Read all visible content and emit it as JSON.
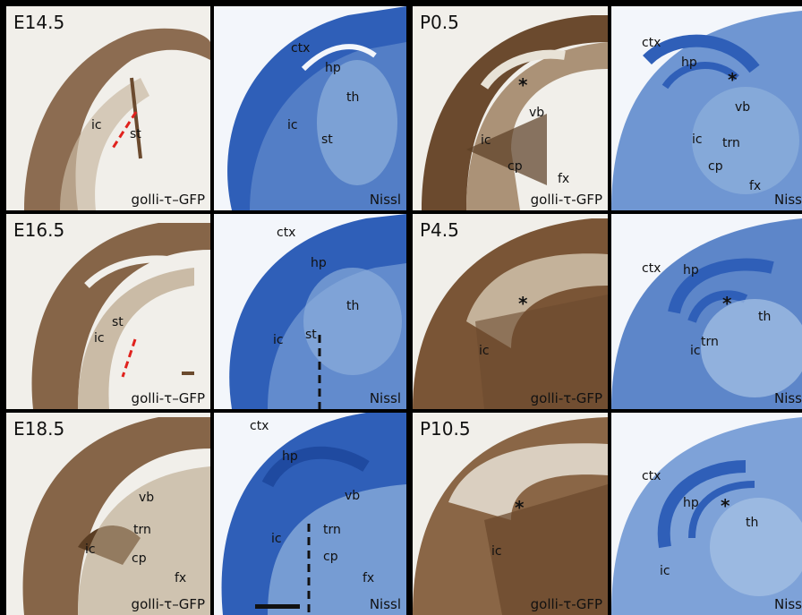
{
  "ages": [
    "E14.5",
    "E16.5",
    "E18.5",
    "P0.5",
    "P4.5",
    "P10.5"
  ],
  "stains": {
    "gfp": "golli-τ–GFP",
    "gfp_p": "golli-τ-GFP",
    "nissl": "Nissl",
    "nissl_cut": "Niss"
  },
  "regions": {
    "ic": "ic",
    "st": "st",
    "ctx": "ctx",
    "hp": "hp",
    "th": "th",
    "vb": "vb",
    "trn": "trn",
    "cp": "cp",
    "fx": "fx",
    "star": "*"
  },
  "colors": {
    "gfp_bg": "#f1efea",
    "gfp_tissue": "#6b4a2e",
    "nissl_bg": "#2f5fb8",
    "nissl_light": "#8fb0dc",
    "dashed_red": "#e0221d",
    "dashed_black": "#111111"
  }
}
